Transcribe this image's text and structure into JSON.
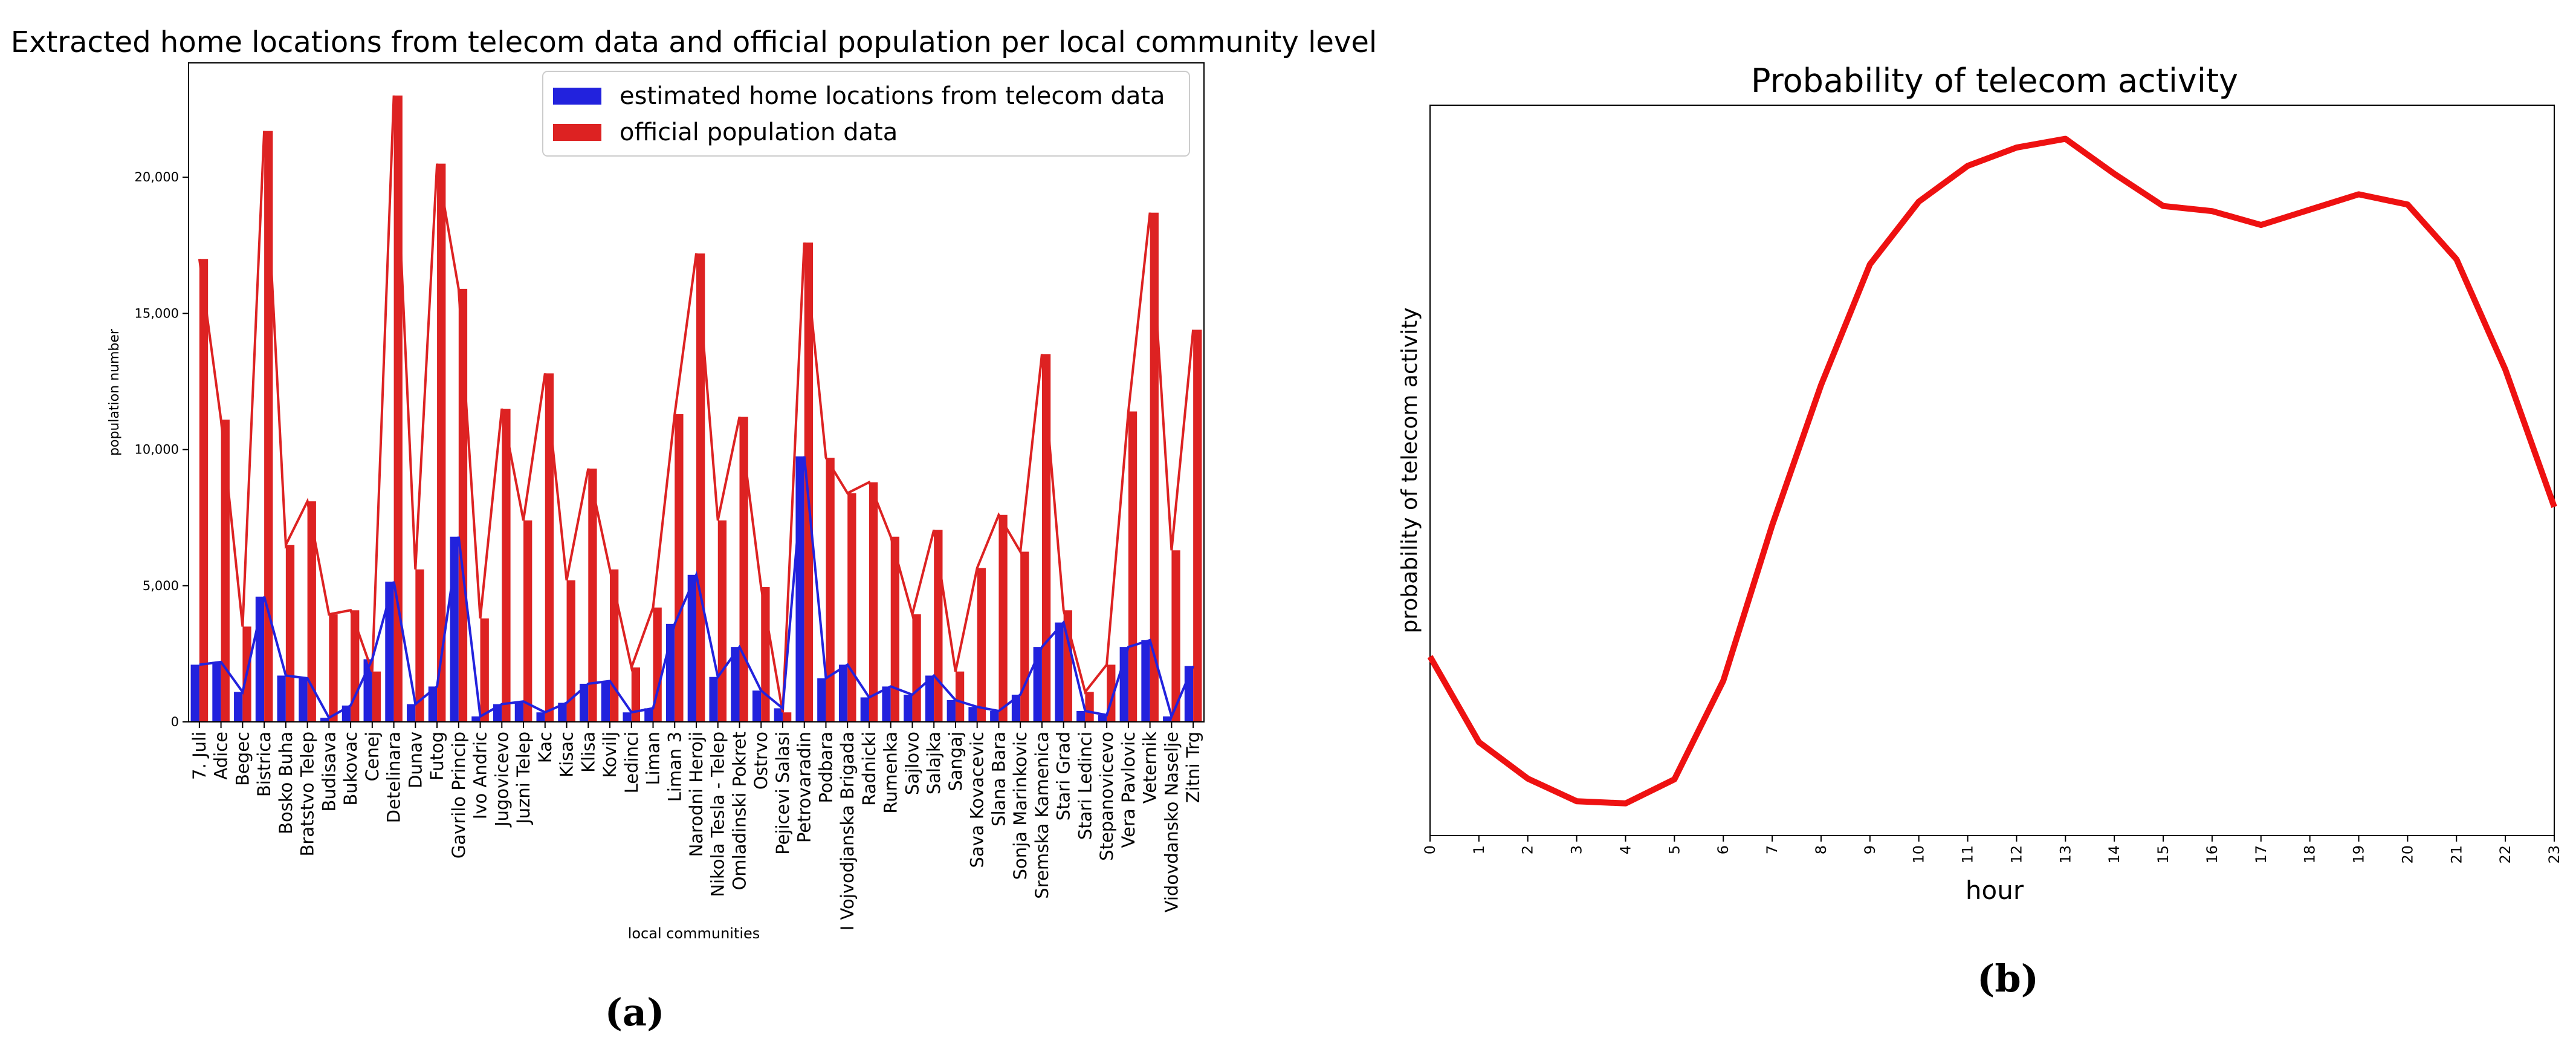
{
  "chart_data": [
    {
      "type": "bar",
      "panel_label": "(a)",
      "title": "Extracted home locations from telecom data and official population per local community level",
      "xlabel": "local communities",
      "ylabel": "population number",
      "ylim": [
        0,
        24200
      ],
      "yticks": [
        0,
        5000,
        10000,
        15000,
        20000
      ],
      "ytick_labels": [
        "0",
        "5,000",
        "10,000",
        "15,000",
        "20,000"
      ],
      "legend_position": "top-right",
      "colors": {
        "telecom": "#2222dd",
        "official": "#dd2222"
      },
      "categories": [
        "7. Juli",
        "Adice",
        "Begec",
        "Bistrica",
        "Bosko Buha",
        "Bratstvo Telep",
        "Budisava",
        "Bukovac",
        "Cenej",
        "Detelinara",
        "Dunav",
        "Futog",
        "Gavrilo Princip",
        "Ivo Andric",
        "Jugovicevo",
        "Juzni Telep",
        "Kac",
        "Kisac",
        "Klisa",
        "Kovilj",
        "Ledinci",
        "Liman",
        "Liman 3",
        "Narodni Heroji",
        "Nikola Tesla - Telep",
        "Omladinski Pokret",
        "Ostrvo",
        "Pejicevi Salasi",
        "Petrovaradin",
        "Podbara",
        "I Vojvodjanska Brigada",
        "Radnicki",
        "Rumenka",
        "Sajlovo",
        "Salajka",
        "Sangaj",
        "Sava Kovacevic",
        "Slana Bara",
        "Sonja Marinkovic",
        "Sremska Kamenica",
        "Stari Grad",
        "Stari Ledinci",
        "Stepanovicevo",
        "Vera Pavlovic",
        "Veternik",
        "Vidovdansko Naselje",
        "Zitni Trg"
      ],
      "series": [
        {
          "name": "estimated home locations from telecom data",
          "values": [
            2100,
            2200,
            1100,
            4600,
            1700,
            1600,
            150,
            600,
            2300,
            5150,
            650,
            1300,
            6800,
            200,
            650,
            750,
            350,
            700,
            1400,
            1500,
            350,
            500,
            3600,
            5400,
            1650,
            2750,
            1150,
            500,
            9750,
            1600,
            2100,
            900,
            1300,
            1000,
            1700,
            800,
            550,
            400,
            1000,
            2750,
            3650,
            400,
            250,
            2750,
            3000,
            200,
            2050
          ]
        },
        {
          "name": "official population data",
          "values": [
            17000,
            11100,
            3500,
            21700,
            6500,
            8100,
            3950,
            4100,
            1850,
            23000,
            5600,
            20500,
            15900,
            3800,
            11500,
            7400,
            12800,
            5200,
            9300,
            5600,
            2000,
            4200,
            11300,
            17200,
            7400,
            11200,
            4950,
            350,
            17600,
            9700,
            8400,
            8800,
            6800,
            3950,
            7050,
            1850,
            5650,
            7600,
            6250,
            13500,
            4100,
            1100,
            2100,
            11400,
            18700,
            6300,
            14400
          ]
        }
      ]
    },
    {
      "type": "line",
      "panel_label": "(b)",
      "title": "Probability of telecom activity",
      "xlabel": "hour",
      "ylabel": "probability of telecom activity",
      "xlim": [
        0,
        23
      ],
      "ylim": [
        0,
        1
      ],
      "x": [
        0,
        1,
        2,
        3,
        4,
        5,
        6,
        7,
        8,
        9,
        10,
        11,
        12,
        13,
        14,
        15,
        16,
        17,
        18,
        19,
        20,
        21,
        22,
        23
      ],
      "xtick_labels": [
        "0",
        "1",
        "2",
        "3",
        "4",
        "5",
        "6",
        "7",
        "8",
        "9",
        "10",
        "11",
        "12",
        "13",
        "14",
        "15",
        "16",
        "17",
        "18",
        "19",
        "20",
        "21",
        "22",
        "23"
      ],
      "series": [
        {
          "name": "probability of telecom activity",
          "values": [
            0.245,
            0.128,
            0.078,
            0.047,
            0.044,
            0.077,
            0.212,
            0.425,
            0.617,
            0.782,
            0.868,
            0.917,
            0.942,
            0.954,
            0.906,
            0.862,
            0.855,
            0.836,
            0.857,
            0.878,
            0.864,
            0.789,
            0.638,
            0.45
          ]
        }
      ],
      "color": "#ee1111"
    }
  ]
}
